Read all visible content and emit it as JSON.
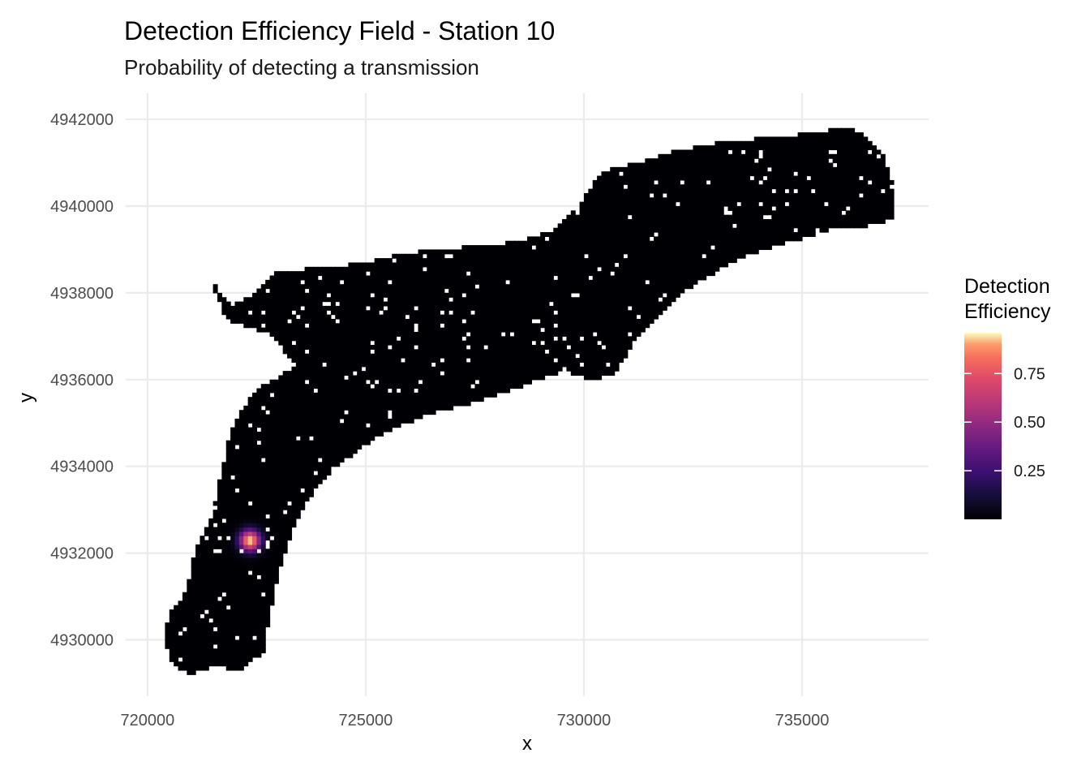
{
  "chart_data": {
    "type": "heatmap",
    "title": "Detection Efficiency Field - Station 10",
    "subtitle": "Probability of detecting a transmission",
    "xlabel": "x",
    "ylabel": "y",
    "xlim": [
      719500,
      737900
    ],
    "ylim": [
      4928700,
      4942600
    ],
    "x_ticks": [
      720000,
      725000,
      730000,
      735000
    ],
    "x_tick_labels": [
      "720000",
      "725000",
      "730000",
      "735000"
    ],
    "y_ticks": [
      4930000,
      4932000,
      4934000,
      4936000,
      4938000,
      4940000,
      4942000
    ],
    "y_tick_labels": [
      "4930000",
      "4932000",
      "4934000",
      "4936000",
      "4938000",
      "4940000",
      "4942000"
    ],
    "grid": true,
    "colormap": "magma",
    "receiver": {
      "x": 722350,
      "y": 4932300,
      "peak_value": 0.96
    },
    "legend": {
      "title_lines": [
        "Detection",
        "Efficiency"
      ],
      "position": "right",
      "range": [
        0,
        0.96
      ],
      "ticks": [
        0.25,
        0.5,
        0.75
      ],
      "tick_labels": [
        "0.25",
        "0.50",
        "0.75"
      ]
    }
  }
}
